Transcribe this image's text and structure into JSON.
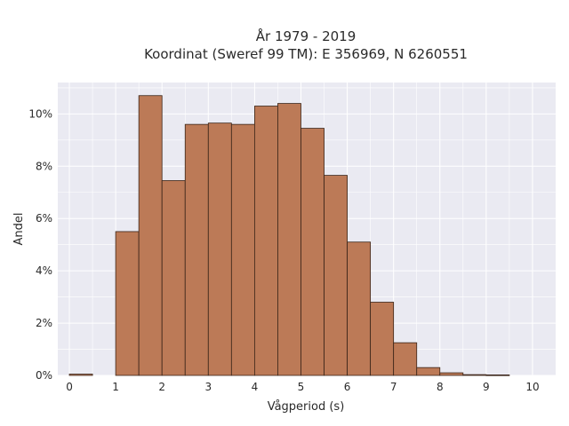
{
  "chart_data": {
    "type": "bar",
    "title_line1": "År 1979 - 2019",
    "title_line2": "Koordinat (Sweref 99 TM): E 356969, N 6260551",
    "xlabel": "Vågperiod (s)",
    "ylabel": "Andel",
    "xlim": [
      -0.25,
      10.5
    ],
    "ylim": [
      0,
      11.2
    ],
    "x_ticks": [
      0,
      1,
      2,
      3,
      4,
      5,
      6,
      7,
      8,
      9,
      10
    ],
    "x_tick_labels": [
      "0",
      "1",
      "2",
      "3",
      "4",
      "5",
      "6",
      "7",
      "8",
      "9",
      "10"
    ],
    "y_ticks": [
      0,
      2,
      4,
      6,
      8,
      10
    ],
    "y_tick_labels": [
      "0%",
      "2%",
      "4%",
      "6%",
      "8%",
      "10%"
    ],
    "bin_width": 0.5,
    "bins": [
      {
        "start": 0.0,
        "value": 0.05
      },
      {
        "start": 0.5,
        "value": 0.0
      },
      {
        "start": 1.0,
        "value": 5.5
      },
      {
        "start": 1.5,
        "value": 10.7
      },
      {
        "start": 2.0,
        "value": 7.45
      },
      {
        "start": 2.5,
        "value": 9.6
      },
      {
        "start": 3.0,
        "value": 9.65
      },
      {
        "start": 3.5,
        "value": 9.6
      },
      {
        "start": 4.0,
        "value": 10.3
      },
      {
        "start": 4.5,
        "value": 10.4
      },
      {
        "start": 5.0,
        "value": 9.45
      },
      {
        "start": 5.5,
        "value": 7.65
      },
      {
        "start": 6.0,
        "value": 5.1
      },
      {
        "start": 6.5,
        "value": 2.8
      },
      {
        "start": 7.0,
        "value": 1.25
      },
      {
        "start": 7.5,
        "value": 0.3
      },
      {
        "start": 8.0,
        "value": 0.1
      },
      {
        "start": 8.5,
        "value": 0.03
      },
      {
        "start": 9.0,
        "value": 0.02
      },
      {
        "start": 9.5,
        "value": 0.0
      }
    ],
    "grid": true,
    "colors": {
      "bar_fill": "#bc7a57",
      "bar_edge": "#3a2418",
      "plot_bg": "#eaeaf2",
      "grid": "#ffffff"
    }
  }
}
